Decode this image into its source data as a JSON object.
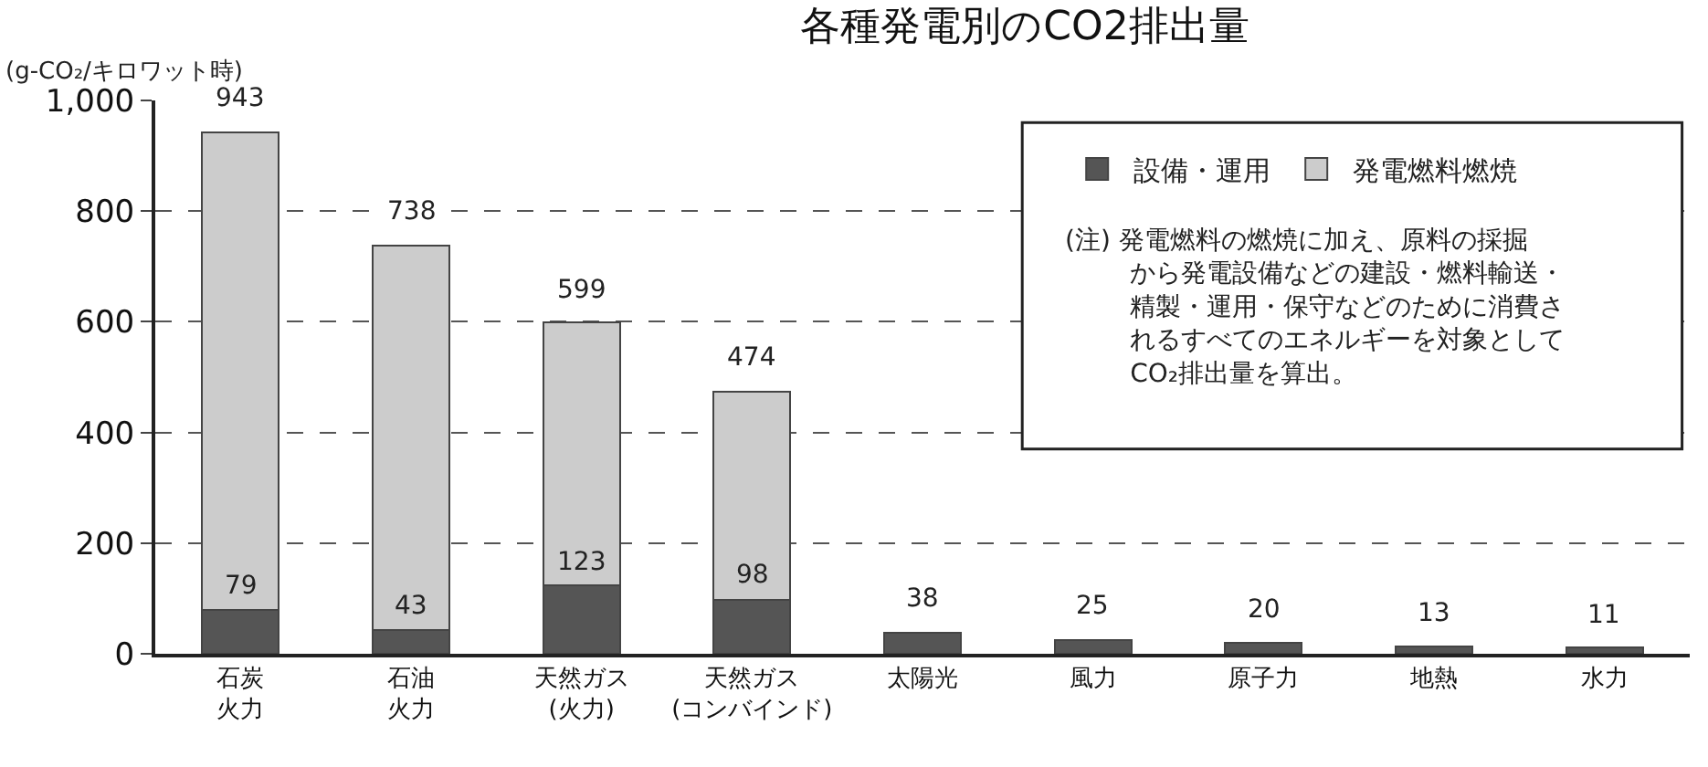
{
  "chart_data": {
    "type": "bar",
    "title": "各種発電別のCO2排出量",
    "ylabel": "(g-CO₂/キロワット時)",
    "categories": [
      "石炭火力",
      "石油火力",
      "天然ガス(火力)",
      "天然ガス(コンバインド)",
      "太陽光",
      "風力",
      "原子力",
      "地熱",
      "水力"
    ],
    "stacked": true,
    "series": [
      {
        "name": "設備・運用",
        "color": "#555555",
        "values": [
          79,
          43,
          123,
          98,
          38,
          25,
          20,
          13,
          11
        ],
        "value_labels": [
          "79",
          "43",
          "123",
          "98",
          null,
          null,
          null,
          null,
          null
        ]
      },
      {
        "name": "発電燃料燃焼",
        "color": "#cccccc",
        "values": [
          864,
          695,
          476,
          376,
          null,
          null,
          null,
          null,
          null
        ]
      }
    ],
    "totals": [
      "943",
      "738",
      "599",
      "474",
      "38",
      "25",
      "20",
      "13",
      "11"
    ],
    "ylim": [
      0,
      1000
    ],
    "yticks": [
      0,
      200,
      400,
      600,
      800,
      {
        "value": 1000,
        "label": "1,000"
      }
    ],
    "grid": "y",
    "legend": "top right",
    "annotations": [
      "(注) 発電燃料の燃焼に加え、原料の採掘から発電設備などの建設・燃料輸送・精製・運用・保守などのために消費されるすべてのエネルギーを対象としてCO₂排出量を算出。"
    ]
  }
}
